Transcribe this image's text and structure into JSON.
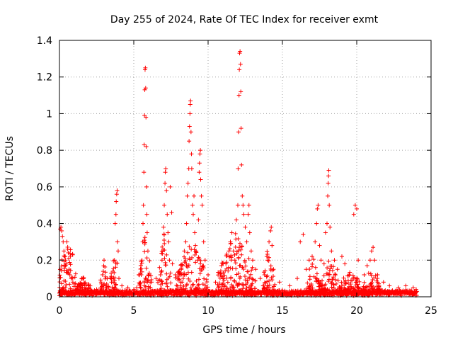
{
  "chart_data": {
    "type": "scatter",
    "title": "Day 255 of 2024, Rate Of TEC Index for receiver exmt",
    "xlabel": "GPS time / hours",
    "ylabel": "ROTI / TECUs",
    "xlim": [
      0,
      25
    ],
    "ylim": [
      0,
      1.4
    ],
    "x_ticks": [
      "0",
      "5",
      "10",
      "15",
      "20",
      "25"
    ],
    "y_ticks": [
      "0",
      "0.2",
      "0.4",
      "0.6",
      "0.8",
      "1",
      "1.2",
      "1.4"
    ],
    "grid": true,
    "marker": "+",
    "color": "#ff0000",
    "points": [
      [
        0.05,
        0.37
      ],
      [
        0.1,
        0.38
      ],
      [
        0.15,
        0.36
      ],
      [
        0.2,
        0.33
      ],
      [
        0.25,
        0.3
      ],
      [
        0.3,
        0.25
      ],
      [
        0.35,
        0.22
      ],
      [
        0.4,
        0.2
      ],
      [
        0.45,
        0.18
      ],
      [
        0.5,
        0.3
      ],
      [
        0.55,
        0.26
      ],
      [
        0.6,
        0.24
      ],
      [
        0.65,
        0.15
      ],
      [
        0.7,
        0.12
      ],
      [
        0.8,
        0.1
      ],
      [
        0.9,
        0.08
      ],
      [
        1.0,
        0.07
      ],
      [
        1.2,
        0.05
      ],
      [
        1.5,
        0.1
      ],
      [
        1.7,
        0.06
      ],
      [
        2.0,
        0.05
      ],
      [
        2.5,
        0.04
      ],
      [
        2.8,
        0.08
      ],
      [
        2.9,
        0.12
      ],
      [
        3.0,
        0.2
      ],
      [
        3.1,
        0.06
      ],
      [
        3.5,
        0.08
      ],
      [
        3.6,
        0.14
      ],
      [
        3.7,
        0.2
      ],
      [
        3.75,
        0.4
      ],
      [
        3.8,
        0.45
      ],
      [
        3.82,
        0.52
      ],
      [
        3.85,
        0.56
      ],
      [
        3.88,
        0.58
      ],
      [
        3.9,
        0.3
      ],
      [
        3.95,
        0.25
      ],
      [
        4.0,
        0.1
      ],
      [
        4.2,
        0.06
      ],
      [
        4.6,
        0.05
      ],
      [
        5.0,
        0.04
      ],
      [
        5.2,
        0.05
      ],
      [
        5.4,
        0.07
      ],
      [
        5.5,
        0.12
      ],
      [
        5.55,
        0.2
      ],
      [
        5.6,
        0.3
      ],
      [
        5.62,
        0.4
      ],
      [
        5.65,
        0.5
      ],
      [
        5.68,
        0.68
      ],
      [
        5.7,
        0.83
      ],
      [
        5.72,
        0.99
      ],
      [
        5.74,
        1.13
      ],
      [
        5.76,
        1.24
      ],
      [
        5.78,
        1.25
      ],
      [
        5.8,
        1.14
      ],
      [
        5.82,
        0.98
      ],
      [
        5.84,
        0.82
      ],
      [
        5.86,
        0.6
      ],
      [
        5.88,
        0.45
      ],
      [
        5.9,
        0.35
      ],
      [
        5.95,
        0.25
      ],
      [
        6.0,
        0.12
      ],
      [
        6.2,
        0.08
      ],
      [
        6.5,
        0.1
      ],
      [
        6.8,
        0.12
      ],
      [
        6.9,
        0.2
      ],
      [
        7.0,
        0.38
      ],
      [
        7.05,
        0.5
      ],
      [
        7.1,
        0.62
      ],
      [
        7.12,
        0.68
      ],
      [
        7.15,
        0.7
      ],
      [
        7.2,
        0.58
      ],
      [
        7.25,
        0.45
      ],
      [
        7.3,
        0.35
      ],
      [
        7.35,
        0.3
      ],
      [
        7.4,
        0.2
      ],
      [
        7.45,
        0.6
      ],
      [
        7.55,
        0.46
      ],
      [
        7.6,
        0.18
      ],
      [
        7.8,
        0.12
      ],
      [
        8.0,
        0.1
      ],
      [
        8.2,
        0.15
      ],
      [
        8.4,
        0.25
      ],
      [
        8.5,
        0.3
      ],
      [
        8.55,
        0.4
      ],
      [
        8.6,
        0.55
      ],
      [
        8.65,
        0.62
      ],
      [
        8.7,
        0.7
      ],
      [
        8.72,
        0.85
      ],
      [
        8.75,
        0.93
      ],
      [
        8.78,
        1.0
      ],
      [
        8.8,
        1.05
      ],
      [
        8.82,
        1.07
      ],
      [
        8.85,
        0.9
      ],
      [
        8.88,
        0.78
      ],
      [
        8.9,
        0.7
      ],
      [
        8.95,
        0.5
      ],
      [
        9.0,
        0.45
      ],
      [
        9.05,
        0.55
      ],
      [
        9.1,
        0.35
      ],
      [
        9.15,
        0.28
      ],
      [
        9.2,
        0.25
      ],
      [
        9.3,
        0.2
      ],
      [
        9.35,
        0.42
      ],
      [
        9.4,
        0.68
      ],
      [
        9.42,
        0.73
      ],
      [
        9.45,
        0.78
      ],
      [
        9.48,
        0.8
      ],
      [
        9.5,
        0.64
      ],
      [
        9.55,
        0.55
      ],
      [
        9.6,
        0.5
      ],
      [
        9.7,
        0.3
      ],
      [
        9.8,
        0.2
      ],
      [
        10.0,
        0.12
      ],
      [
        10.5,
        0.08
      ],
      [
        11.0,
        0.1
      ],
      [
        11.2,
        0.18
      ],
      [
        11.4,
        0.25
      ],
      [
        11.5,
        0.3
      ],
      [
        11.6,
        0.35
      ],
      [
        11.7,
        0.25
      ],
      [
        11.8,
        0.2
      ],
      [
        11.9,
        0.42
      ],
      [
        12.0,
        0.5
      ],
      [
        12.02,
        0.7
      ],
      [
        12.05,
        0.9
      ],
      [
        12.08,
        1.1
      ],
      [
        12.1,
        1.24
      ],
      [
        12.12,
        1.33
      ],
      [
        12.15,
        1.34
      ],
      [
        12.18,
        1.27
      ],
      [
        12.2,
        1.12
      ],
      [
        12.22,
        0.92
      ],
      [
        12.25,
        0.72
      ],
      [
        12.3,
        0.55
      ],
      [
        12.35,
        0.5
      ],
      [
        12.4,
        0.45
      ],
      [
        12.5,
        0.38
      ],
      [
        12.6,
        0.3
      ],
      [
        12.7,
        0.45
      ],
      [
        12.75,
        0.5
      ],
      [
        12.8,
        0.35
      ],
      [
        12.9,
        0.25
      ],
      [
        13.0,
        0.2
      ],
      [
        13.2,
        0.15
      ],
      [
        13.5,
        0.1
      ],
      [
        13.8,
        0.12
      ],
      [
        14.0,
        0.2
      ],
      [
        14.1,
        0.3
      ],
      [
        14.2,
        0.36
      ],
      [
        14.25,
        0.38
      ],
      [
        14.3,
        0.28
      ],
      [
        14.4,
        0.15
      ],
      [
        14.8,
        0.08
      ],
      [
        15.5,
        0.06
      ],
      [
        16.0,
        0.1
      ],
      [
        16.2,
        0.3
      ],
      [
        16.4,
        0.34
      ],
      [
        16.6,
        0.15
      ],
      [
        16.8,
        0.2
      ],
      [
        17.0,
        0.22
      ],
      [
        17.2,
        0.3
      ],
      [
        17.3,
        0.4
      ],
      [
        17.35,
        0.48
      ],
      [
        17.4,
        0.5
      ],
      [
        17.5,
        0.28
      ],
      [
        17.6,
        0.2
      ],
      [
        17.8,
        0.18
      ],
      [
        17.9,
        0.35
      ],
      [
        18.0,
        0.4
      ],
      [
        18.05,
        0.55
      ],
      [
        18.08,
        0.62
      ],
      [
        18.1,
        0.66
      ],
      [
        18.12,
        0.69
      ],
      [
        18.15,
        0.5
      ],
      [
        18.2,
        0.38
      ],
      [
        18.3,
        0.25
      ],
      [
        18.5,
        0.2
      ],
      [
        18.7,
        0.15
      ],
      [
        19.0,
        0.22
      ],
      [
        19.2,
        0.18
      ],
      [
        19.5,
        0.12
      ],
      [
        19.8,
        0.45
      ],
      [
        19.9,
        0.5
      ],
      [
        20.0,
        0.48
      ],
      [
        20.1,
        0.2
      ],
      [
        20.5,
        0.12
      ],
      [
        20.7,
        0.17
      ],
      [
        20.9,
        0.2
      ],
      [
        21.0,
        0.25
      ],
      [
        21.1,
        0.27
      ],
      [
        21.2,
        0.2
      ],
      [
        21.4,
        0.12
      ],
      [
        21.8,
        0.08
      ],
      [
        22.2,
        0.06
      ],
      [
        22.8,
        0.05
      ],
      [
        23.3,
        0.06
      ],
      [
        23.8,
        0.05
      ],
      [
        24.0,
        0.04
      ]
    ],
    "bursts": [
      [
        0.0,
        1.1,
        0.37
      ],
      [
        1.1,
        2.2,
        0.1
      ],
      [
        2.7,
        3.3,
        0.18
      ],
      [
        3.4,
        4.1,
        0.25
      ],
      [
        5.3,
        6.2,
        0.35
      ],
      [
        6.6,
        7.5,
        0.35
      ],
      [
        7.8,
        10.0,
        0.3
      ],
      [
        10.6,
        13.2,
        0.35
      ],
      [
        13.7,
        14.5,
        0.3
      ],
      [
        16.6,
        17.6,
        0.22
      ],
      [
        17.6,
        18.8,
        0.2
      ],
      [
        18.8,
        20.3,
        0.15
      ],
      [
        20.4,
        21.6,
        0.15
      ]
    ]
  }
}
